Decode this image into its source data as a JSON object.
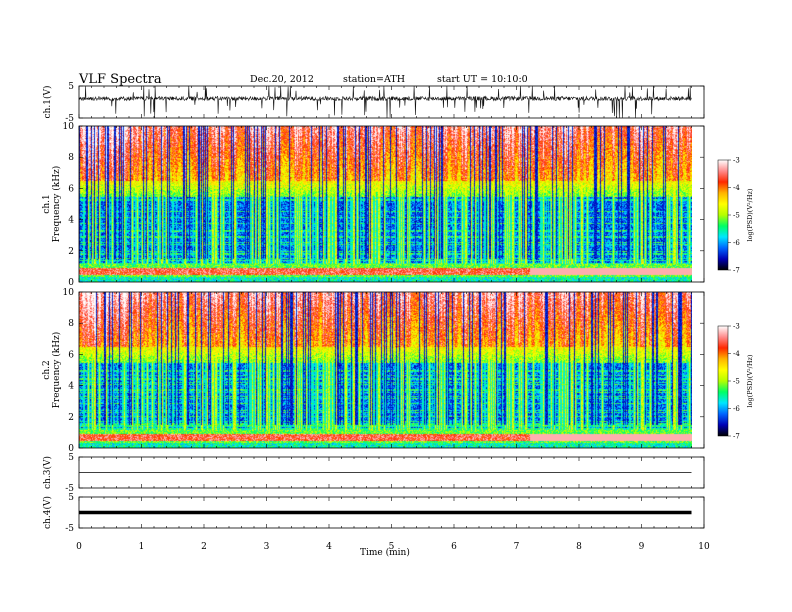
{
  "header": {
    "title": "VLF  Spectra",
    "date": "Dec.20, 2012",
    "station": "station=ATH",
    "start": "start  UT  =    10:10:0"
  },
  "colors": {
    "waveform": "#111111",
    "colormap": [
      "#000000",
      "#0000b4",
      "#0064ff",
      "#00e6ff",
      "#00ff64",
      "#b4ff00",
      "#ffff00",
      "#ffb400",
      "#ff2800",
      "#ff8c8c",
      "#ffffff"
    ]
  },
  "chart_data": [
    {
      "type": "line",
      "panel": "ch1",
      "ylabel": "ch.1(V)",
      "ylim": [
        -5,
        5
      ],
      "yticks": [
        "5",
        "-5"
      ],
      "note_level": "waveform fluctuating around ~+1 V with spikes"
    },
    {
      "type": "heatmap",
      "panel": "spec1",
      "ylabel_top": "ch.1",
      "ylabel": "Frequency  (kHz)",
      "ylim": [
        0,
        10
      ],
      "yticks": [
        "0",
        "2",
        "4",
        "6",
        "8",
        "10"
      ],
      "colorbar": {
        "label": "log(PSD)(V²/Hz)",
        "range": [
          -7,
          -3
        ],
        "ticks": [
          "-3",
          "-4",
          "-5",
          "-6",
          "-7"
        ]
      }
    },
    {
      "type": "heatmap",
      "panel": "spec2",
      "ylabel_top": "ch.2",
      "ylabel": "Frequency  (kHz)",
      "ylim": [
        0,
        10
      ],
      "yticks": [
        "0",
        "2",
        "4",
        "6",
        "8",
        "10"
      ],
      "colorbar": {
        "label": "log(PSD)(V²/Hz)",
        "range": [
          -7,
          -3
        ],
        "ticks": [
          "-3",
          "-4",
          "-5",
          "-6",
          "-7"
        ]
      }
    },
    {
      "type": "line",
      "panel": "ch3",
      "ylabel": "ch.3(V)",
      "ylim": [
        -5,
        5
      ],
      "yticks": [
        "5",
        "-5"
      ],
      "value": 0
    },
    {
      "type": "line",
      "panel": "ch4",
      "ylabel": "ch.4(V)",
      "ylim": [
        -5,
        5
      ],
      "yticks": [
        "5",
        "-5"
      ],
      "value": 0
    }
  ],
  "xaxis": {
    "label": "Time  (min)",
    "range": [
      0,
      10
    ],
    "data_end": 9.8,
    "ticks": [
      "0",
      "1",
      "2",
      "3",
      "4",
      "5",
      "6",
      "7",
      "8",
      "9",
      "10"
    ]
  }
}
